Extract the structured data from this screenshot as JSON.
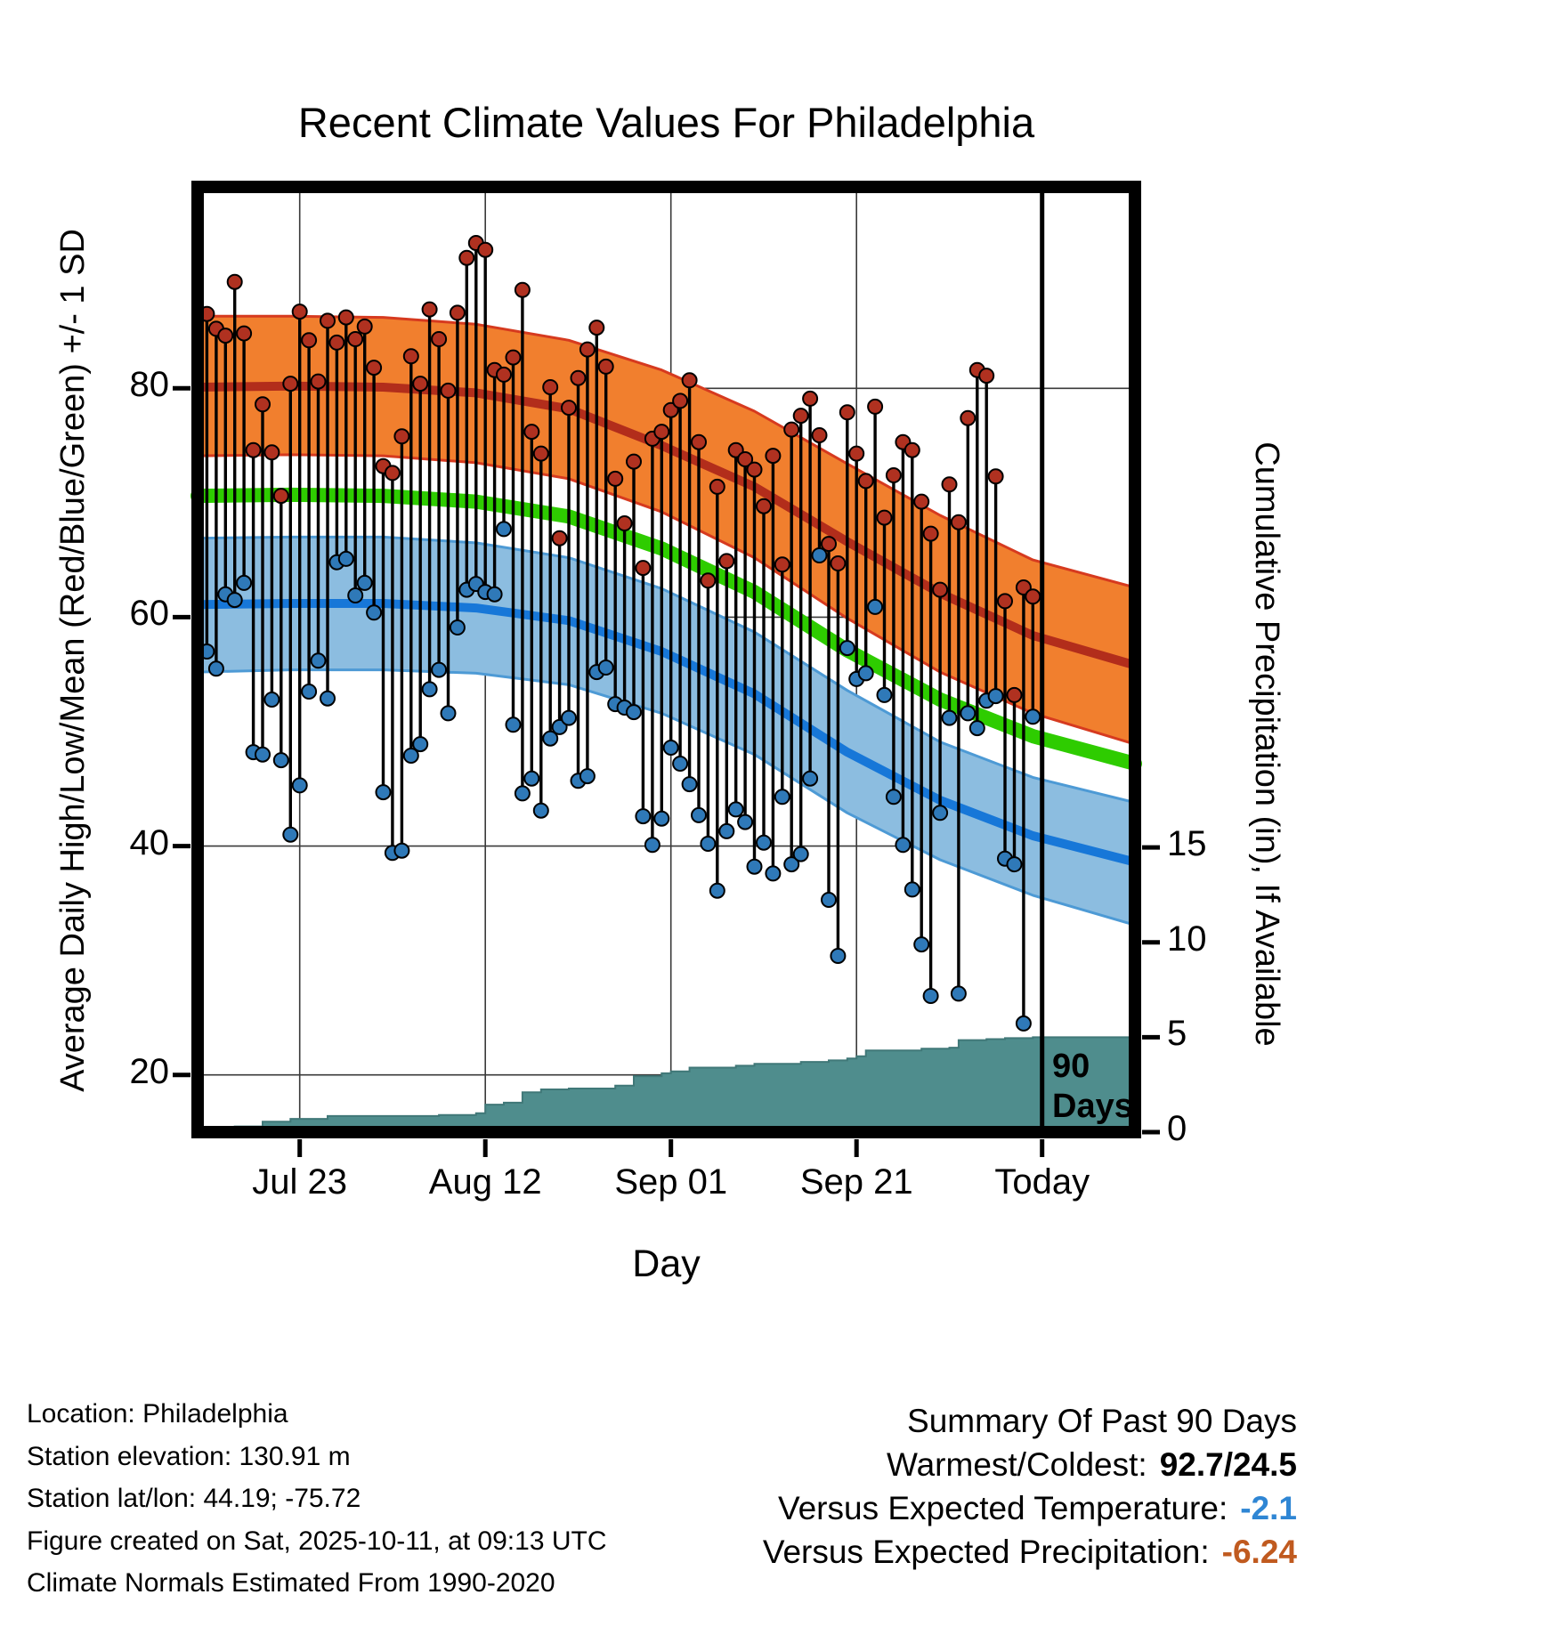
{
  "chart_data": {
    "type": "line",
    "subtype": "climate normals bands with daily high/low bars and cumulative precipitation area",
    "title": "Recent Climate Values For Philadelphia",
    "xlabel": "Day",
    "ylabel_left": "Average Daily High/Low/Mean (Red/Blue/Green) +/- 1 SD",
    "ylabel_right": "Cumulative Precipitation (in), If Available",
    "x_axis": {
      "day_min": 0,
      "day_max": 101,
      "today_day": 91,
      "ticks": [
        {
          "day": 11,
          "label": "Jul 23"
        },
        {
          "day": 31,
          "label": "Aug 12"
        },
        {
          "day": 51,
          "label": "Sep 01"
        },
        {
          "day": 71,
          "label": "Sep 21"
        },
        {
          "day": 91,
          "label": "Today"
        }
      ]
    },
    "temp_axis": {
      "min": 15,
      "max": 97.6,
      "ticks": [
        20,
        40,
        60,
        80
      ]
    },
    "precip_axis": {
      "min": 0,
      "max": 49.8,
      "ticks": [
        0,
        5,
        10,
        15
      ]
    },
    "today_marker": {
      "line1": "90",
      "line2": "Days"
    },
    "normals": {
      "days": [
        0,
        10,
        20,
        30,
        40,
        50,
        60,
        70,
        80,
        90,
        101
      ],
      "high_upper": [
        86.3,
        86.3,
        86.2,
        85.6,
        84.2,
        81.6,
        78.0,
        73.4,
        68.9,
        65.0,
        62.6
      ],
      "high_mean": [
        80.1,
        80.2,
        80.1,
        79.6,
        78.2,
        75.0,
        71.4,
        66.6,
        62.1,
        58.4,
        55.8
      ],
      "high_lower": [
        74.1,
        74.2,
        74.1,
        73.5,
        72.1,
        69.2,
        65.2,
        59.9,
        55.2,
        51.6,
        48.9
      ],
      "mean": [
        70.6,
        70.7,
        70.6,
        70.1,
        68.8,
        66.0,
        62.2,
        57.1,
        52.8,
        49.6,
        47.2
      ],
      "low_upper": [
        66.9,
        67.0,
        67.0,
        66.5,
        65.2,
        62.5,
        58.7,
        53.6,
        49.1,
        46.0,
        43.8
      ],
      "low_mean": [
        61.1,
        61.2,
        61.2,
        60.8,
        59.7,
        57.0,
        53.3,
        48.2,
        44.0,
        40.9,
        38.6
      ],
      "low_lower": [
        55.2,
        55.4,
        55.4,
        55.1,
        54.1,
        51.6,
        48.0,
        42.9,
        38.8,
        35.7,
        33.1
      ]
    },
    "daily": {
      "first_day_index": 1,
      "highs": [
        86.5,
        85.2,
        84.6,
        89.3,
        84.8,
        74.6,
        78.6,
        74.4,
        70.6,
        80.4,
        86.7,
        84.2,
        80.6,
        85.9,
        84.0,
        86.2,
        84.3,
        85.4,
        81.8,
        73.2,
        72.6,
        75.8,
        82.8,
        80.4,
        86.9,
        84.3,
        79.8,
        86.6,
        91.4,
        92.7,
        92.1,
        81.6,
        81.2,
        82.7,
        88.6,
        76.2,
        74.3,
        80.1,
        66.9,
        78.3,
        80.9,
        83.4,
        85.3,
        81.9,
        72.1,
        68.2,
        73.6,
        64.3,
        75.6,
        76.2,
        78.1,
        78.9,
        80.7,
        75.3,
        63.2,
        71.4,
        64.9,
        74.6,
        73.8,
        72.9,
        69.7,
        74.1,
        64.6,
        76.4,
        77.6,
        79.1,
        75.9,
        66.4,
        64.7,
        77.9,
        74.3,
        71.9,
        78.4,
        68.7,
        72.4,
        75.3,
        74.6,
        70.1,
        67.3,
        62.4,
        71.6,
        68.3,
        77.4,
        81.6,
        81.1,
        72.3,
        61.4,
        53.2,
        62.6,
        61.8
      ],
      "lows": [
        57.0,
        55.5,
        62.0,
        61.5,
        63.0,
        48.2,
        48.0,
        52.8,
        47.5,
        41.0,
        45.3,
        53.5,
        56.2,
        52.9,
        64.8,
        65.1,
        61.9,
        63.0,
        60.4,
        44.7,
        39.4,
        39.6,
        47.9,
        48.9,
        53.7,
        55.4,
        51.6,
        59.1,
        62.4,
        62.9,
        62.2,
        62.0,
        67.7,
        50.6,
        44.6,
        45.9,
        43.1,
        49.4,
        50.4,
        51.2,
        45.7,
        46.1,
        55.2,
        55.6,
        52.4,
        52.1,
        51.7,
        42.6,
        40.1,
        42.4,
        48.6,
        47.2,
        45.4,
        42.7,
        40.2,
        36.1,
        41.3,
        43.2,
        42.1,
        38.2,
        40.3,
        37.6,
        44.3,
        38.4,
        39.3,
        45.9,
        65.4,
        35.3,
        30.4,
        57.3,
        54.6,
        55.1,
        60.9,
        53.2,
        44.3,
        40.1,
        36.2,
        31.4,
        26.9,
        42.9,
        51.2,
        27.1,
        51.6,
        50.3,
        52.7,
        53.1,
        38.9,
        38.4,
        24.5,
        51.3
      ]
    },
    "cumulative_precip": {
      "steps": [
        [
          0,
          0.15
        ],
        [
          4,
          0.3
        ],
        [
          7,
          0.55
        ],
        [
          10,
          0.7
        ],
        [
          14,
          0.85
        ],
        [
          26,
          0.9
        ],
        [
          30,
          1.0
        ],
        [
          31,
          1.45
        ],
        [
          33,
          1.55
        ],
        [
          35,
          2.1
        ],
        [
          37,
          2.25
        ],
        [
          40,
          2.3
        ],
        [
          45,
          2.45
        ],
        [
          47,
          2.95
        ],
        [
          50,
          3.1
        ],
        [
          51,
          3.2
        ],
        [
          53,
          3.4
        ],
        [
          58,
          3.5
        ],
        [
          60,
          3.6
        ],
        [
          65,
          3.7
        ],
        [
          68,
          3.78
        ],
        [
          70,
          3.88
        ],
        [
          71,
          4.0
        ],
        [
          72,
          4.3
        ],
        [
          78,
          4.4
        ],
        [
          81,
          4.45
        ],
        [
          82,
          4.85
        ],
        [
          85,
          4.9
        ],
        [
          87,
          4.95
        ],
        [
          90,
          5.0
        ]
      ]
    },
    "summary_values": {
      "warmest_f": 92.7,
      "coldest_f": 24.5,
      "temp_departure_f": -2.1,
      "precip_departure_in": -6.24
    }
  },
  "footer": {
    "location": "Location: Philadelphia",
    "elevation": "Station elevation: 130.91 m",
    "latlon": "Station lat/lon: 44.19; -75.72",
    "created": "Figure created on Sat, 2025-10-11, at 09:13 UTC",
    "normals": "Climate Normals Estimated From 1990-2020"
  },
  "summary": {
    "title": "Summary Of Past 90 Days",
    "rows": [
      {
        "label": "Warmest/Coldest:",
        "value": "92.7/24.5"
      },
      {
        "label": "Versus Expected Temperature:",
        "value": "-2.1"
      },
      {
        "label": "Versus Expected Precipitation:",
        "value": "-6.24"
      }
    ]
  },
  "colors": {
    "grid": "#3a3a3a",
    "high_band": "#f17f2e",
    "high_edge": "#d63a1f",
    "high_mean_line": "#b22d1b",
    "mean_line": "#2ecc00",
    "low_band": "#8cbde0",
    "low_edge": "#4d9ad5",
    "low_mean_line": "#1777d8",
    "high_dot": "#b03120",
    "low_dot": "#2f79b8",
    "precip_fill": "#4f8d8d",
    "precip_edge": "#407878",
    "warmest_coldest_value": "#000000",
    "temp_departure": "#2f86d4",
    "precip_departure": "#c05a1f"
  }
}
